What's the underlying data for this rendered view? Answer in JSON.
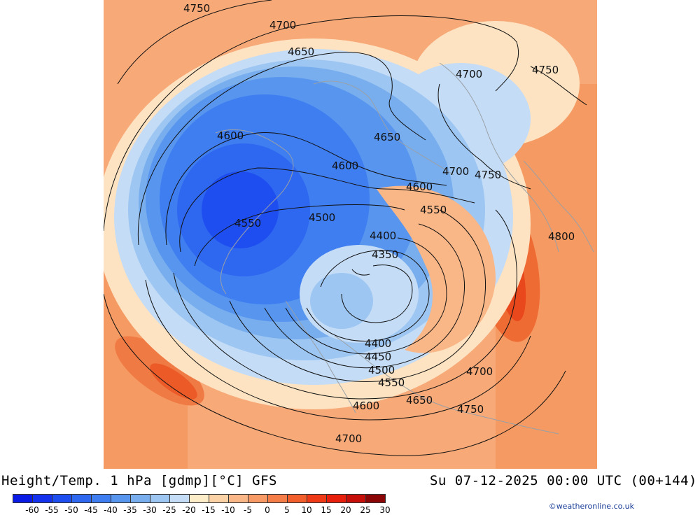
{
  "header": {
    "title": "Height/Temp. 1 hPa [gdmp][°C] GFS",
    "datetime": "Su 07-12-2025 00:00 UTC (00+144)"
  },
  "legend": {
    "ticks": [
      "-60",
      "-55",
      "-50",
      "-45",
      "-40",
      "-35",
      "-30",
      "-25",
      "-20",
      "-15",
      "-10",
      "-5",
      "0",
      "5",
      "10",
      "15",
      "20",
      "25",
      "30"
    ],
    "colors": [
      "#0a1be6",
      "#1432ee",
      "#1f4ef0",
      "#2e67f0",
      "#3f7ef0",
      "#5795ef",
      "#78aeee",
      "#9dc6f2",
      "#c4dcf6",
      "#fdecc8",
      "#fbd2a6",
      "#f9b687",
      "#f79a66",
      "#f57e48",
      "#f25f2c",
      "#ee3a16",
      "#e81f0c",
      "#c70f0a",
      "#8b0606"
    ]
  },
  "map": {
    "contour_labels": [
      {
        "text": "4750"
      },
      {
        "text": "4700"
      },
      {
        "text": "4650"
      },
      {
        "text": "4700"
      },
      {
        "text": "4750"
      },
      {
        "text": "4600"
      },
      {
        "text": "4650"
      },
      {
        "text": "4600"
      },
      {
        "text": "4700"
      },
      {
        "text": "4750"
      },
      {
        "text": "4600"
      },
      {
        "text": "4550"
      },
      {
        "text": "4550"
      },
      {
        "text": "4500"
      },
      {
        "text": "4400"
      },
      {
        "text": "4800"
      },
      {
        "text": "4350"
      },
      {
        "text": "4400"
      },
      {
        "text": "4450"
      },
      {
        "text": "4500"
      },
      {
        "text": "4550"
      },
      {
        "text": "4700"
      },
      {
        "text": "4650"
      },
      {
        "text": "4600"
      },
      {
        "text": "4750"
      },
      {
        "text": "4700"
      }
    ]
  },
  "credit": "©weatheronline.co.uk"
}
